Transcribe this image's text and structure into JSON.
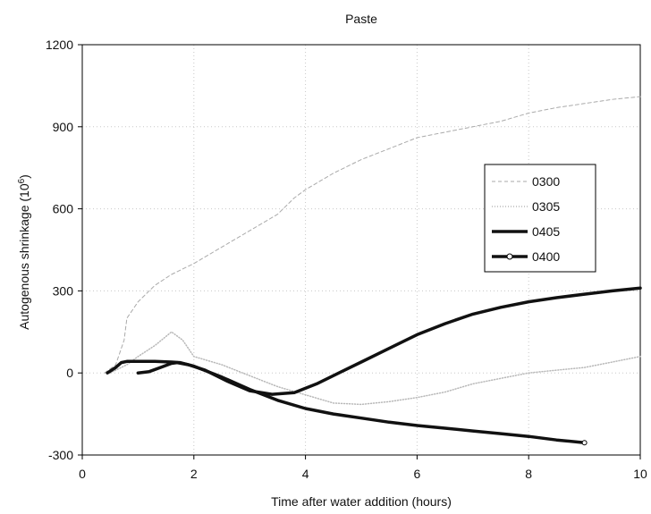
{
  "chart_data": {
    "type": "line",
    "title": "Paste",
    "xlabel": "Time after water addition (hours)",
    "ylabel_main": "Autogenous shrinkage (10",
    "ylabel_sup": "6",
    "ylabel_tail": ")",
    "xlim": [
      0,
      10
    ],
    "ylim": [
      -300,
      1200
    ],
    "x_ticks": [
      0,
      2,
      4,
      6,
      8,
      10
    ],
    "y_ticks": [
      -300,
      0,
      300,
      600,
      900,
      1200
    ],
    "grid": true,
    "legend_position": "right",
    "series": [
      {
        "name": "0300",
        "style": "dashed-light",
        "color": "#aaaaaa",
        "points": [
          [
            0.4,
            0
          ],
          [
            0.6,
            30
          ],
          [
            0.75,
            120
          ],
          [
            0.8,
            200
          ],
          [
            1.0,
            260
          ],
          [
            1.3,
            320
          ],
          [
            1.6,
            360
          ],
          [
            2.0,
            400
          ],
          [
            2.5,
            460
          ],
          [
            3.0,
            520
          ],
          [
            3.5,
            580
          ],
          [
            3.8,
            640
          ],
          [
            4.0,
            670
          ],
          [
            4.5,
            730
          ],
          [
            5.0,
            780
          ],
          [
            5.5,
            820
          ],
          [
            6.0,
            860
          ],
          [
            6.5,
            880
          ],
          [
            7.0,
            900
          ],
          [
            7.5,
            920
          ],
          [
            8.0,
            950
          ],
          [
            8.5,
            970
          ],
          [
            9.0,
            985
          ],
          [
            9.5,
            1000
          ],
          [
            10.0,
            1010
          ]
        ]
      },
      {
        "name": "0305",
        "style": "dotted-light",
        "color": "#b8b8b8",
        "points": [
          [
            0.5,
            0
          ],
          [
            0.6,
            10
          ],
          [
            0.8,
            30
          ],
          [
            1.0,
            60
          ],
          [
            1.3,
            100
          ],
          [
            1.6,
            150
          ],
          [
            1.8,
            120
          ],
          [
            2.0,
            60
          ],
          [
            2.5,
            30
          ],
          [
            3.0,
            -10
          ],
          [
            3.5,
            -50
          ],
          [
            4.0,
            -80
          ],
          [
            4.5,
            -110
          ],
          [
            5.0,
            -115
          ],
          [
            5.5,
            -105
          ],
          [
            6.0,
            -90
          ],
          [
            6.5,
            -70
          ],
          [
            7.0,
            -40
          ],
          [
            7.5,
            -20
          ],
          [
            8.0,
            0
          ],
          [
            8.5,
            10
          ],
          [
            9.0,
            20
          ],
          [
            9.5,
            40
          ],
          [
            10.0,
            60
          ]
        ]
      },
      {
        "name": "0405",
        "style": "thick",
        "color": "#111111",
        "points": [
          [
            1.0,
            0
          ],
          [
            1.2,
            5
          ],
          [
            1.4,
            20
          ],
          [
            1.6,
            35
          ],
          [
            1.7,
            38
          ],
          [
            1.9,
            30
          ],
          [
            2.2,
            10
          ],
          [
            2.6,
            -30
          ],
          [
            3.0,
            -65
          ],
          [
            3.4,
            -78
          ],
          [
            3.8,
            -72
          ],
          [
            4.2,
            -40
          ],
          [
            4.6,
            0
          ],
          [
            5.0,
            40
          ],
          [
            5.5,
            90
          ],
          [
            6.0,
            140
          ],
          [
            6.5,
            180
          ],
          [
            7.0,
            215
          ],
          [
            7.5,
            240
          ],
          [
            8.0,
            260
          ],
          [
            8.5,
            275
          ],
          [
            9.0,
            288
          ],
          [
            9.5,
            300
          ],
          [
            10.0,
            310
          ]
        ]
      },
      {
        "name": "0400",
        "style": "thick-marker",
        "color": "#111111",
        "points": [
          [
            0.45,
            0
          ],
          [
            0.6,
            20
          ],
          [
            0.7,
            38
          ],
          [
            0.8,
            42
          ],
          [
            1.0,
            42
          ],
          [
            1.3,
            42
          ],
          [
            1.6,
            40
          ],
          [
            1.75,
            38
          ],
          [
            2.0,
            25
          ],
          [
            2.5,
            -15
          ],
          [
            3.0,
            -60
          ],
          [
            3.5,
            -100
          ],
          [
            4.0,
            -130
          ],
          [
            4.5,
            -150
          ],
          [
            5.0,
            -165
          ],
          [
            5.5,
            -180
          ],
          [
            6.0,
            -192
          ],
          [
            6.5,
            -202
          ],
          [
            7.0,
            -212
          ],
          [
            7.5,
            -222
          ],
          [
            8.0,
            -232
          ],
          [
            8.5,
            -245
          ],
          [
            9.0,
            -255
          ]
        ]
      }
    ]
  }
}
